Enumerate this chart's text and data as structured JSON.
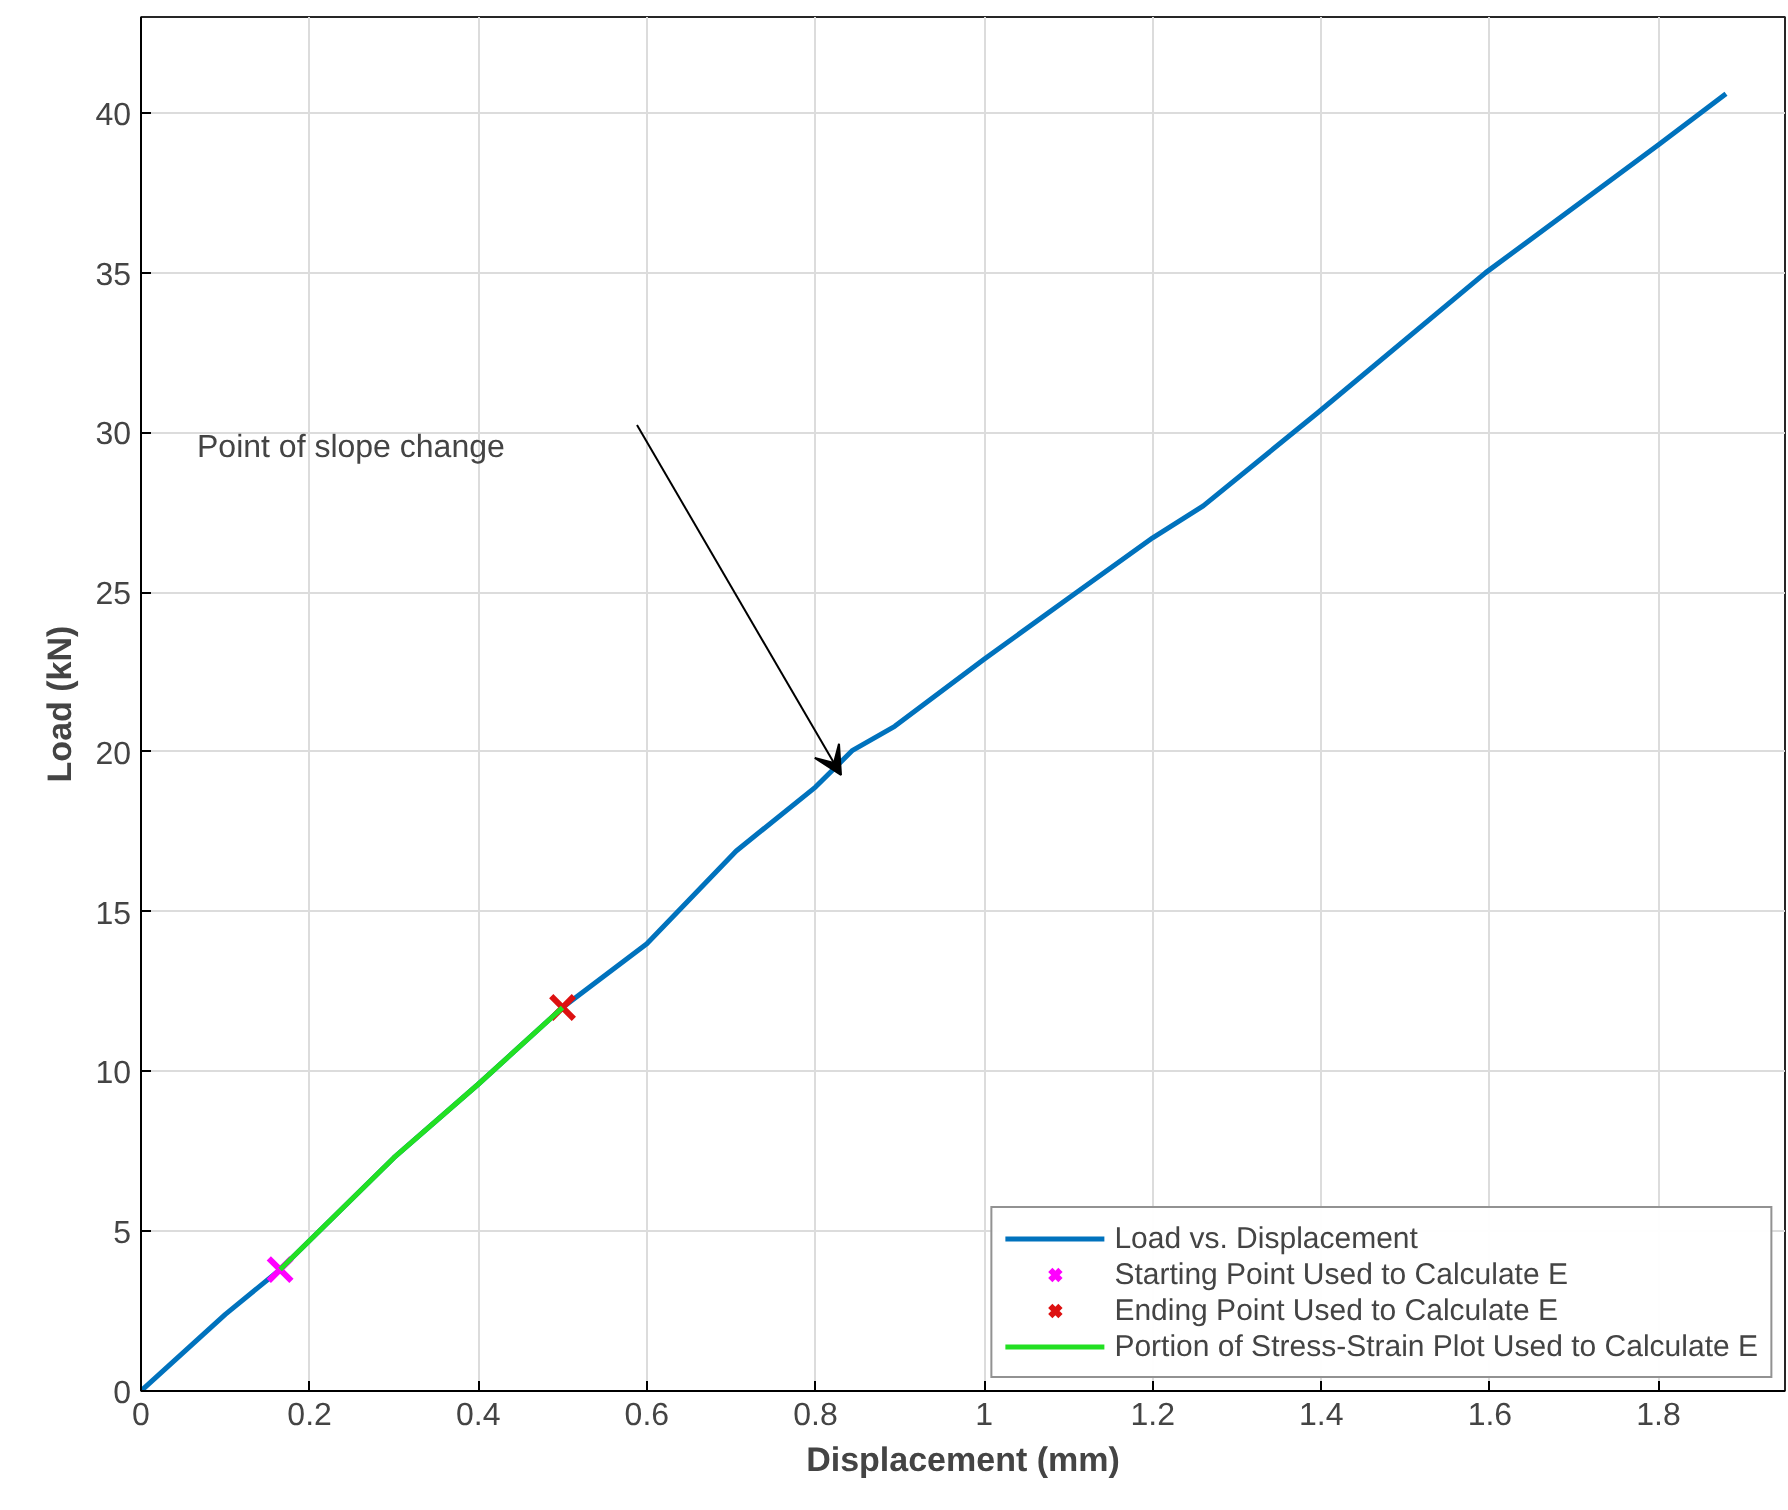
{
  "chart_data": {
    "type": "line",
    "xlabel": "Displacement (mm)",
    "ylabel": "Load (kN)",
    "xlim": [
      0,
      1.95
    ],
    "ylim": [
      0,
      43
    ],
    "xticks": [
      0,
      0.2,
      0.4,
      0.6,
      0.8,
      1,
      1.2,
      1.4,
      1.6,
      1.8
    ],
    "yticks": [
      0,
      5,
      10,
      15,
      20,
      25,
      30,
      35,
      40
    ],
    "grid": true,
    "legend": "bottom right",
    "series": [
      {
        "name": "Load vs. Displacement",
        "color": "#0072bd",
        "x": [
          0,
          0.1,
          0.165,
          0.3,
          0.4,
          0.5,
          0.6,
          0.706,
          0.8,
          0.844,
          0.894,
          1.0,
          1.11,
          1.2,
          1.26,
          1.395,
          1.595,
          1.8,
          1.88
        ],
        "values": [
          0,
          2.4,
          3.8,
          7.3,
          9.6,
          12.0,
          14.0,
          16.9,
          18.9,
          20.05,
          20.8,
          22.9,
          25.0,
          26.7,
          27.7,
          30.6,
          35.0,
          39.0,
          40.6
        ]
      },
      {
        "name": "Starting Point Used to Calculate E",
        "type": "scatter",
        "marker": "cross",
        "color": "#ff00ff",
        "x": [
          0.165
        ],
        "values": [
          3.8
        ]
      },
      {
        "name": "Ending Point Used to Calculate E",
        "type": "scatter",
        "marker": "cross",
        "color": "#dd1111",
        "x": [
          0.5
        ],
        "values": [
          12.0
        ]
      },
      {
        "name": "Portion of Stress-Strain Plot Used to Calculate E",
        "type": "line",
        "color": "#22e022",
        "x": [
          0.165,
          0.3,
          0.4,
          0.5
        ],
        "values": [
          3.8,
          7.3,
          9.6,
          12.0
        ]
      }
    ],
    "annotations": [
      "Point of slope change"
    ]
  }
}
